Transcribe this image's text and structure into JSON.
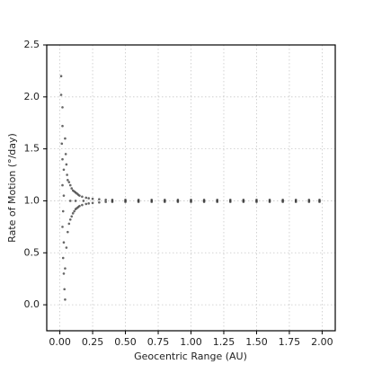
{
  "chart_data": {
    "type": "scatter",
    "xlabel": "Geocentric Range (AU)",
    "ylabel": "Rate of Motion (°/day)",
    "xlim": [
      -0.1,
      2.1
    ],
    "ylim": [
      -0.25,
      2.5
    ],
    "xticks": [
      {
        "value": 0,
        "label": "0.00"
      },
      0.25,
      {
        "value": 0.5,
        "label": "0.50"
      },
      0.75,
      {
        "value": 1,
        "label": "1.00"
      },
      1.25,
      {
        "value": 1.5,
        "label": "1.50"
      },
      1.75,
      {
        "value": 2,
        "label": "2.00"
      }
    ],
    "yticks": [
      {
        "value": 0,
        "label": "0.0"
      },
      0.5,
      {
        "value": 1,
        "label": "1.0"
      },
      1.5,
      {
        "value": 2,
        "label": "2.0"
      },
      2.5
    ],
    "grid": true,
    "series": [
      {
        "color": "#333333",
        "x": [
          0.01,
          0.01,
          0.02,
          0.02,
          0.015,
          0.02,
          0.03,
          0.02,
          0.03,
          0.025,
          0.02,
          0.03,
          0.025,
          0.03,
          0.035,
          0.04,
          0.04,
          0.045,
          0.04,
          0.05,
          0.05,
          0.055,
          0.06,
          0.06,
          0.07,
          0.07,
          0.08,
          0.08,
          0.09,
          0.09,
          0.1,
          0.1,
          0.11,
          0.11,
          0.12,
          0.12,
          0.13,
          0.13,
          0.14,
          0.14,
          0.15,
          0.15,
          0.17,
          0.17,
          0.2,
          0.2,
          0.22,
          0.22,
          0.25,
          0.25,
          0.08,
          0.12,
          0.18,
          0.3,
          0.3,
          0.35,
          0.35,
          0.4,
          0.4,
          0.4,
          0.5,
          0.5,
          0.5,
          0.6,
          0.6,
          0.6,
          0.7,
          0.7,
          0.7,
          0.8,
          0.8,
          0.8,
          0.9,
          0.9,
          0.9,
          1.0,
          1.0,
          1.0,
          1.1,
          1.1,
          1.1,
          1.2,
          1.2,
          1.2,
          1.3,
          1.3,
          1.3,
          1.4,
          1.4,
          1.4,
          1.5,
          1.5,
          1.5,
          1.6,
          1.6,
          1.6,
          1.7,
          1.7,
          1.7,
          1.8,
          1.8,
          1.8,
          1.9,
          1.9,
          1.9,
          1.98,
          1.98,
          1.98
        ],
        "values": [
          2.2,
          2.02,
          1.9,
          1.72,
          1.55,
          1.4,
          1.3,
          1.15,
          1.05,
          0.9,
          0.75,
          0.6,
          0.45,
          0.3,
          0.15,
          0.05,
          1.6,
          1.45,
          0.35,
          0.55,
          1.35,
          1.25,
          0.7,
          1.2,
          0.78,
          1.18,
          0.82,
          1.15,
          0.85,
          1.12,
          0.88,
          1.1,
          0.9,
          1.09,
          0.92,
          1.08,
          0.93,
          1.07,
          0.94,
          1.06,
          0.95,
          1.05,
          0.96,
          1.04,
          0.97,
          1.03,
          0.975,
          1.025,
          0.98,
          1.02,
          1.0,
          1.0,
          1.0,
          0.985,
          1.015,
          0.99,
          1.01,
          0.99,
          1.0,
          1.01,
          0.99,
          1.0,
          1.01,
          0.99,
          1.0,
          1.01,
          0.99,
          1.0,
          1.01,
          0.99,
          1.0,
          1.01,
          0.99,
          1.0,
          1.01,
          0.99,
          1.0,
          1.01,
          0.99,
          1.0,
          1.01,
          0.99,
          1.0,
          1.01,
          0.99,
          1.0,
          1.01,
          0.99,
          1.0,
          1.01,
          0.99,
          1.0,
          1.01,
          0.99,
          1.0,
          1.01,
          0.99,
          1.0,
          1.01,
          0.99,
          1.0,
          1.01,
          0.99,
          1.0,
          1.01,
          0.99,
          1.0,
          1.01
        ]
      }
    ]
  }
}
